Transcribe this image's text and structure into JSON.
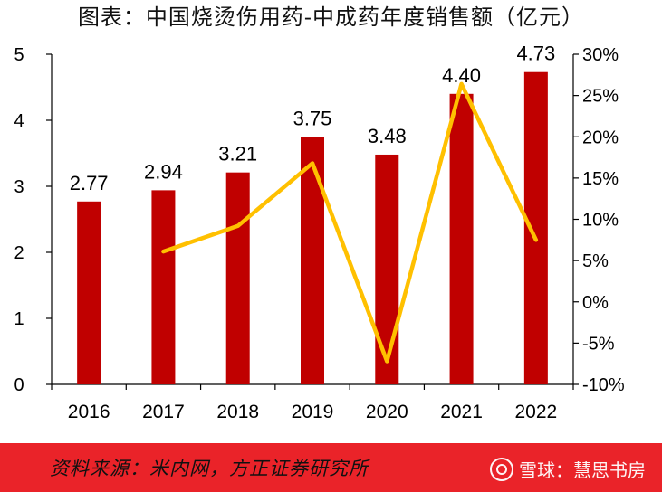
{
  "title": "图表：中国烧烫伤用药-中成药年度销售额（亿元）",
  "chart_data": {
    "type": "bar",
    "categories": [
      "2016",
      "2017",
      "2018",
      "2019",
      "2020",
      "2021",
      "2022"
    ],
    "series": [
      {
        "type": "bar",
        "axis": "left",
        "color": "#c00000",
        "values": [
          2.77,
          2.94,
          3.21,
          3.75,
          3.48,
          4.4,
          4.73
        ],
        "labels": [
          "2.77",
          "2.94",
          "3.21",
          "3.75",
          "3.48",
          "4.40",
          "4.73"
        ]
      },
      {
        "type": "line",
        "axis": "right",
        "color": "#ffc000",
        "values": [
          null,
          6.1,
          9.2,
          16.8,
          -7.2,
          26.4,
          7.5
        ]
      }
    ],
    "ylim_left": [
      0,
      5
    ],
    "yticks_left": [
      "0",
      "1",
      "2",
      "3",
      "4",
      "5"
    ],
    "ylim_right": [
      -10,
      30
    ],
    "yticks_right": [
      "-10%",
      "-5%",
      "0%",
      "5%",
      "10%",
      "15%",
      "20%",
      "25%",
      "30%"
    ],
    "grid": false,
    "legend": "none"
  },
  "footer": {
    "source": "资料来源：米内网，方正证券研究所",
    "watermark": "雪球：慧思书房",
    "watermark_icon": "snowball-logo-icon"
  }
}
